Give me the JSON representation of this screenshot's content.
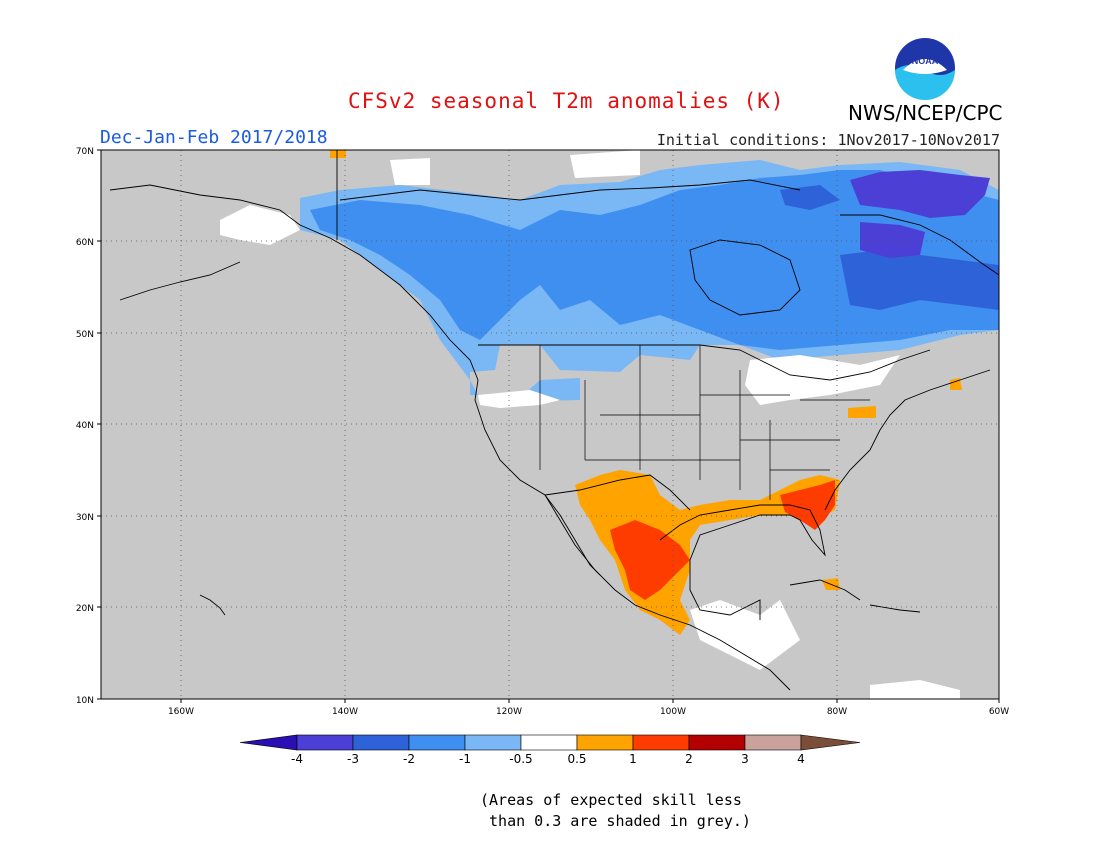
{
  "header": {
    "title": "CFSv2 seasonal T2m anomalies (K)",
    "period": "Dec-Jan-Feb 2017/2018",
    "initial_conditions": "Initial conditions: 1Nov2017-10Nov2017",
    "agency": "NWS/NCEP/CPC",
    "logo_text": "NOAA"
  },
  "map": {
    "projection": "cylindrical",
    "lon_range": [
      -172,
      -60
    ],
    "lat_range": [
      10,
      70
    ],
    "lat_ticks": [
      "10N",
      "20N",
      "30N",
      "40N",
      "50N",
      "60N",
      "70N"
    ],
    "lon_ticks": [
      "160W",
      "140W",
      "120W",
      "100W",
      "80W",
      "60W"
    ],
    "grid": "dotted",
    "missing_color": "#c8c8c8"
  },
  "legend": {
    "ticks": [
      "-4",
      "-3",
      "-2",
      "-1",
      "-0.5",
      "0.5",
      "1",
      "2",
      "3",
      "4"
    ],
    "colors": [
      "#2b0fb3",
      "#4b3fd6",
      "#2e62d8",
      "#3f8ff0",
      "#7ab7f5",
      "#ffffff",
      "#ffa300",
      "#ff3c00",
      "#b30000",
      "#c9a39b",
      "#7a4e38"
    ]
  },
  "footnote": "(Areas of expected skill less\n than 0.3 are shaded in grey.)"
}
